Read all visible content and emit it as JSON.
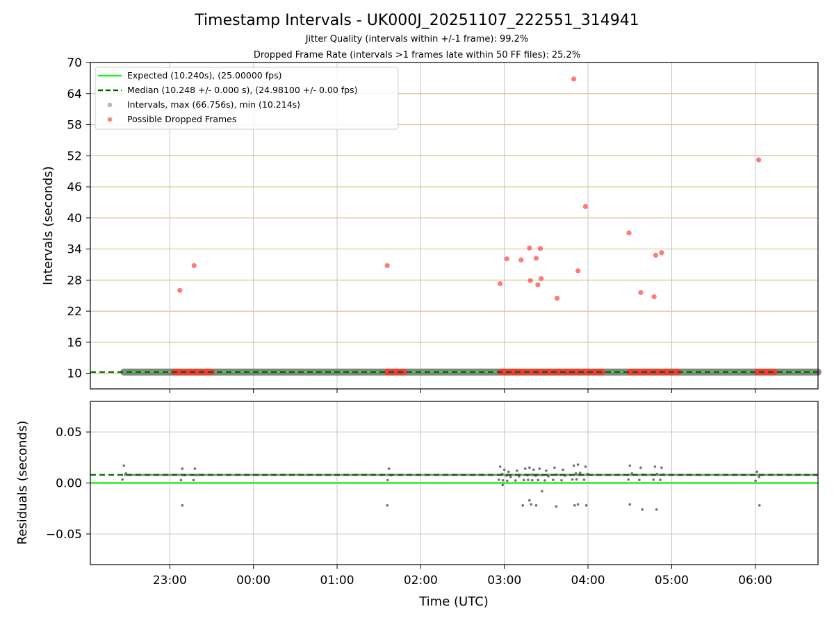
{
  "chart_data": [
    {
      "type": "scatter",
      "panel": "intervals",
      "title": "Timestamp Intervals - UK000J_20251107_222551_314941",
      "subtitles": [
        "Jitter Quality (intervals within +/-1 frame): 99.2%",
        "Dropped Frame Rate (intervals >1 frames late within 50 FF files): 25.2%"
      ],
      "ylabel": "Intervals (seconds)",
      "ylim": [
        7,
        70
      ],
      "yticks": [
        10,
        16,
        22,
        28,
        34,
        40,
        46,
        52,
        58,
        64,
        70
      ],
      "ytick_labels": [
        "10",
        "16",
        "22",
        "28",
        "34",
        "40",
        "46",
        "52",
        "58",
        "64",
        "70"
      ],
      "xlim_hours": [
        -1.95,
        6.75
      ],
      "legend_position": "top-left",
      "legend": [
        "Expected (10.240s), (25.00000 fps)",
        "Median (10.248 +/- 0.000 s), (24.98100 +/- 0.00 fps)",
        "Intervals, max (66.756s), min (10.214s)",
        "Possible Dropped Frames"
      ],
      "expected": 10.24,
      "median": 10.248,
      "interval_range_hours": [
        -1.55,
        6.75
      ],
      "dropped_cluster_ranges_hours": [
        [
          -0.95,
          -0.5
        ],
        [
          1.6,
          1.8
        ],
        [
          2.95,
          4.17
        ],
        [
          4.5,
          5.08
        ],
        [
          6.02,
          6.23
        ]
      ],
      "dropped_frames": {
        "x_hours": [
          -0.88,
          -0.71,
          1.6,
          2.95,
          3.03,
          3.2,
          3.3,
          3.31,
          3.38,
          3.4,
          3.43,
          3.44,
          3.63,
          3.83,
          3.88,
          3.97,
          4.49,
          4.63,
          4.79,
          4.81,
          4.88,
          6.04
        ],
        "y": [
          26.0,
          30.8,
          30.8,
          27.3,
          32.1,
          31.9,
          34.2,
          27.9,
          32.2,
          27.1,
          34.1,
          28.3,
          24.5,
          66.8,
          29.8,
          42.2,
          37.1,
          25.6,
          24.8,
          32.8,
          33.3,
          51.2
        ]
      }
    },
    {
      "type": "scatter",
      "panel": "residuals",
      "xlabel": "Time (UTC)",
      "ylabel": "Residuals (seconds)",
      "ylim": [
        -0.08,
        0.08
      ],
      "yticks": [
        -0.05,
        0.0,
        0.05
      ],
      "ytick_labels": [
        "−0.05",
        "0.00",
        "0.05"
      ],
      "xticks_hours": [
        -1,
        0,
        1,
        2,
        3,
        4,
        5,
        6
      ],
      "xtick_labels": [
        "23:00",
        "00:00",
        "01:00",
        "02:00",
        "03:00",
        "04:00",
        "05:00",
        "06:00"
      ],
      "expected": 0.0,
      "median": 0.008,
      "outliers": {
        "x_hours": [
          -0.85,
          1.6,
          2.98,
          3.22,
          3.3,
          3.32,
          3.38,
          3.45,
          3.62,
          3.84,
          3.88,
          3.98,
          4.5,
          4.65,
          4.82,
          6.05
        ],
        "y": [
          -0.022,
          -0.022,
          -0.002,
          -0.022,
          -0.017,
          -0.021,
          -0.022,
          -0.008,
          -0.023,
          -0.022,
          -0.021,
          -0.022,
          -0.021,
          -0.026,
          -0.026,
          -0.022
        ]
      },
      "spikes": {
        "x_hours": [
          -1.55,
          -0.85,
          -0.7,
          1.62,
          2.95,
          3.0,
          3.05,
          3.15,
          3.25,
          3.3,
          3.35,
          3.42,
          3.5,
          3.6,
          3.7,
          3.83,
          3.88,
          3.97,
          4.5,
          4.63,
          4.8,
          4.88,
          6.02
        ],
        "y": [
          0.017,
          0.014,
          0.014,
          0.014,
          0.016,
          0.013,
          0.011,
          0.012,
          0.014,
          0.015,
          0.013,
          0.014,
          0.012,
          0.015,
          0.013,
          0.017,
          0.018,
          0.016,
          0.017,
          0.015,
          0.016,
          0.015,
          0.011
        ]
      }
    }
  ],
  "colors": {
    "expected": "#22ee22",
    "median": "#006400",
    "intervals": "#707070",
    "dropped": "#ff3333"
  }
}
